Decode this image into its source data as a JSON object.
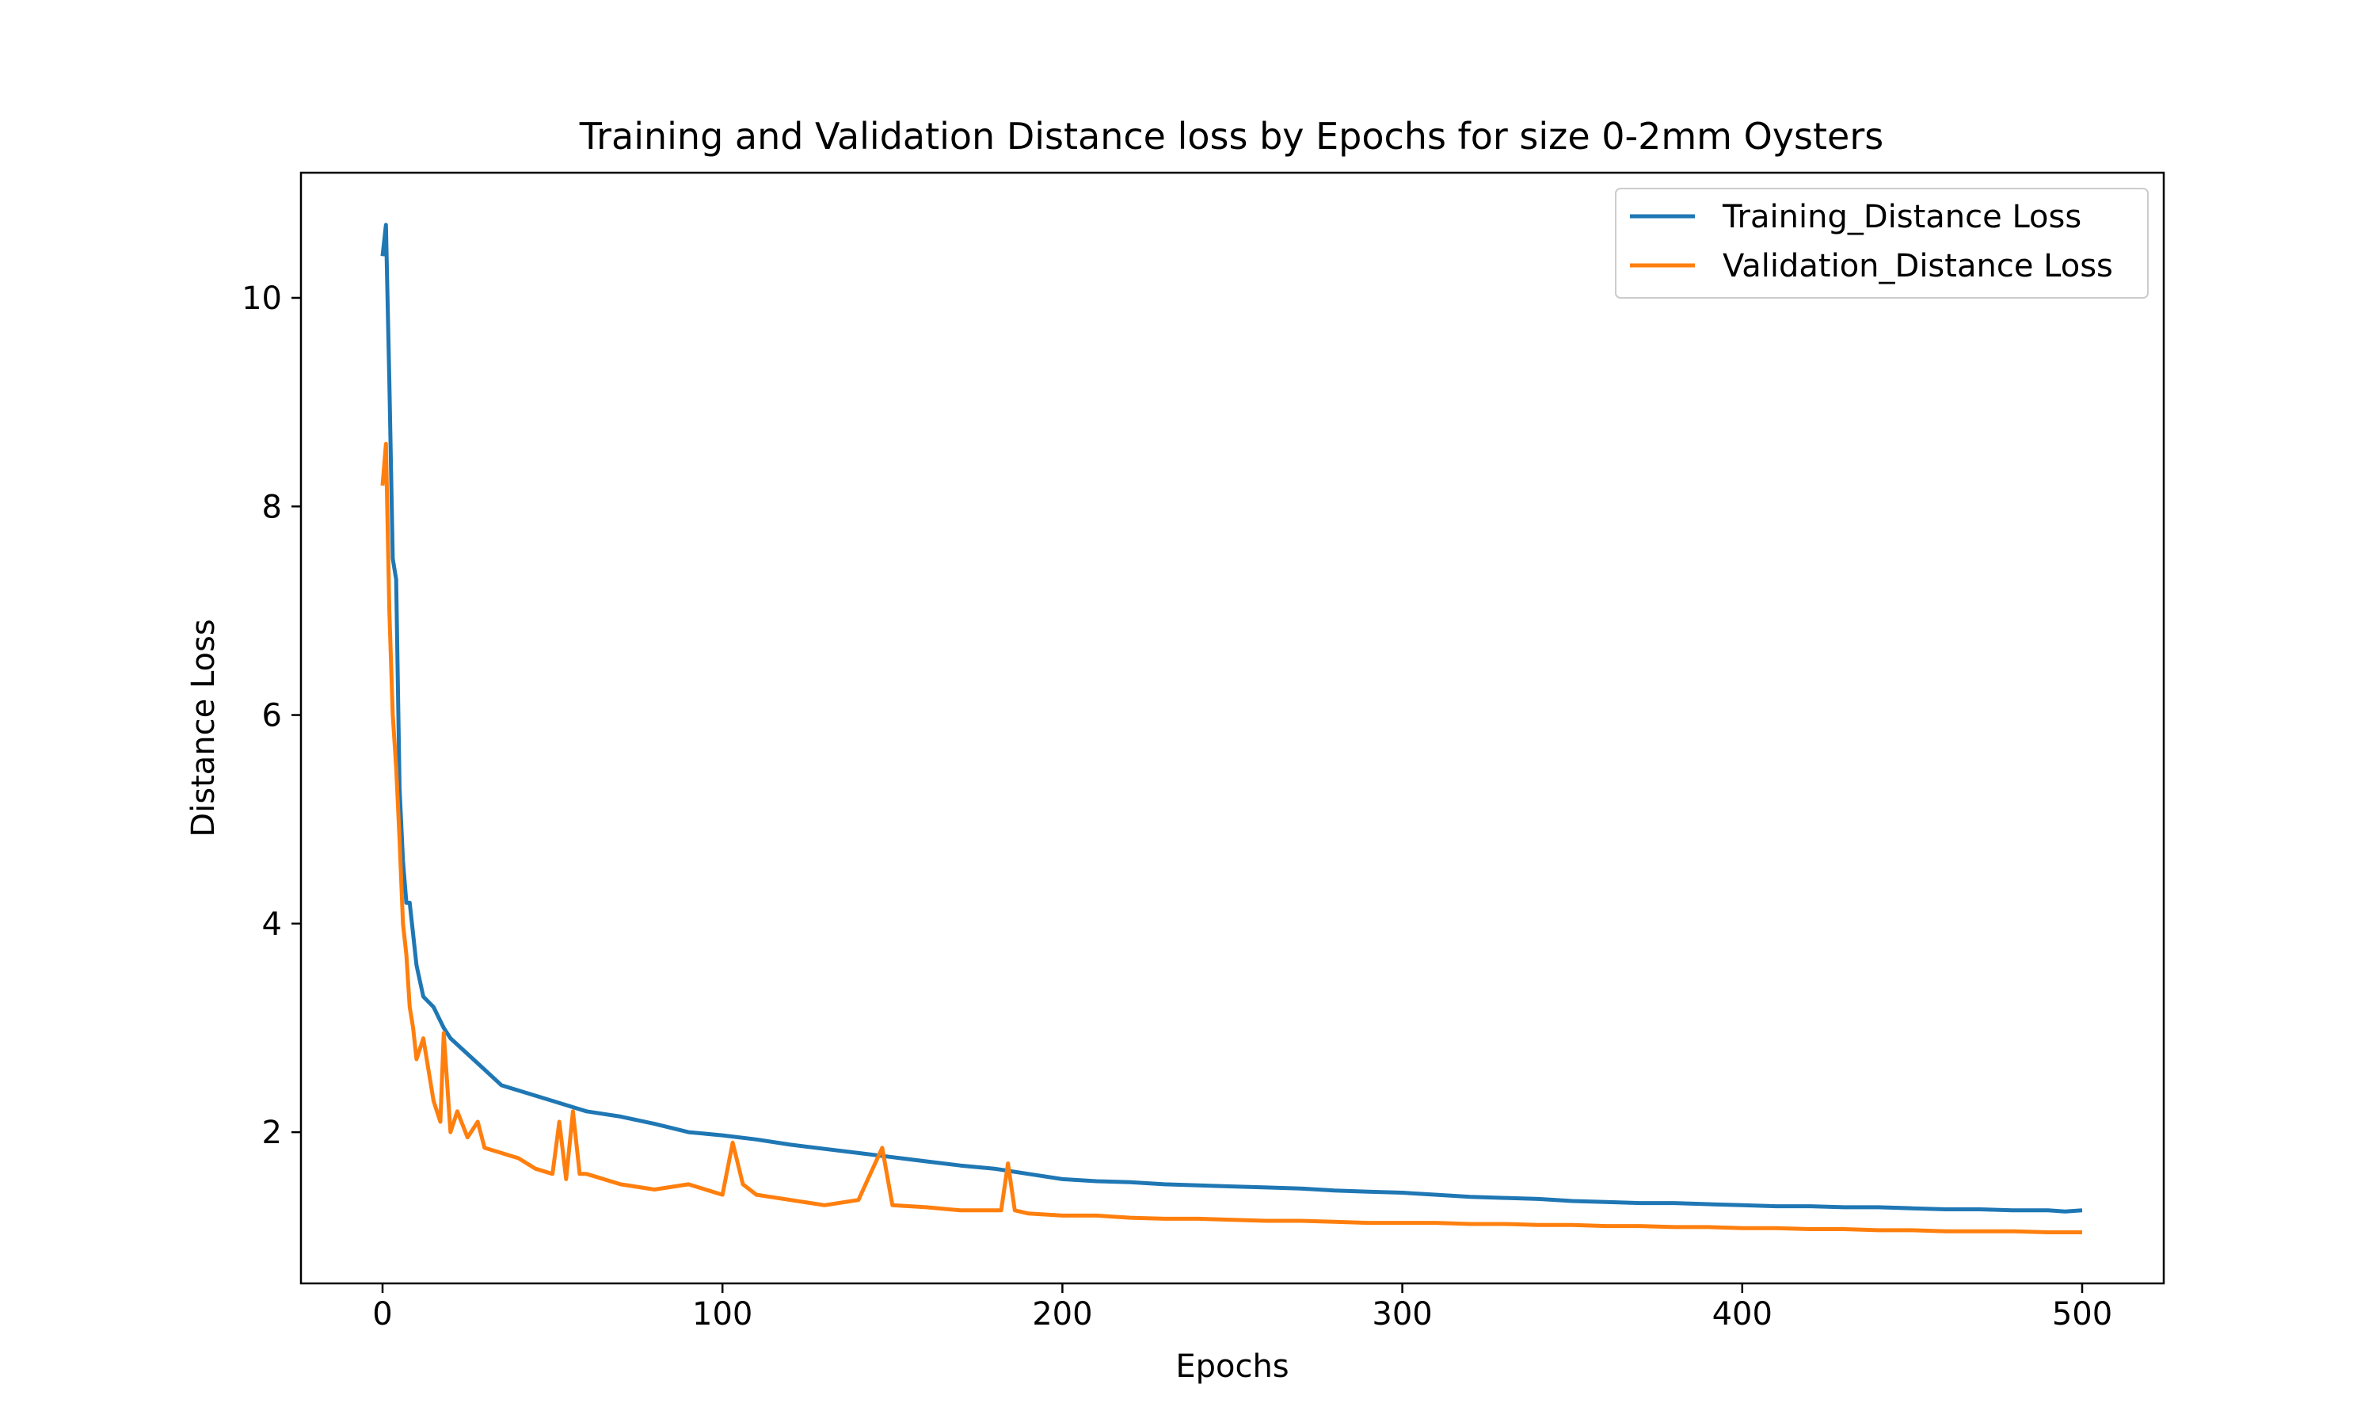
{
  "chart_data": {
    "type": "line",
    "title": "Training and Validation Distance loss by Epochs for size 0-2mm Oysters",
    "xlabel": "Epochs",
    "ylabel": "Distance Loss",
    "xlim": [
      -24,
      524
    ],
    "ylim": [
      0.55,
      11.2
    ],
    "xticks": [
      0,
      100,
      200,
      300,
      400,
      500
    ],
    "yticks": [
      2,
      4,
      6,
      8,
      10
    ],
    "x_tick_labels": [
      "0",
      "100",
      "200",
      "300",
      "400",
      "500"
    ],
    "y_tick_labels": [
      "2",
      "4",
      "6",
      "8",
      "10"
    ],
    "grid": false,
    "legend_position": "top-right",
    "series": [
      {
        "name": "Training_Distance Loss",
        "color": "#1f77b4",
        "points": [
          [
            0,
            10.4
          ],
          [
            1,
            10.7
          ],
          [
            2,
            9.2
          ],
          [
            3,
            7.5
          ],
          [
            4,
            7.3
          ],
          [
            5,
            5.3
          ],
          [
            6,
            4.6
          ],
          [
            7,
            4.2
          ],
          [
            8,
            4.2
          ],
          [
            10,
            3.6
          ],
          [
            12,
            3.3
          ],
          [
            15,
            3.2
          ],
          [
            18,
            3.0
          ],
          [
            20,
            2.9
          ],
          [
            25,
            2.75
          ],
          [
            30,
            2.6
          ],
          [
            35,
            2.45
          ],
          [
            40,
            2.4
          ],
          [
            50,
            2.3
          ],
          [
            60,
            2.2
          ],
          [
            70,
            2.15
          ],
          [
            80,
            2.08
          ],
          [
            90,
            2.0
          ],
          [
            100,
            1.97
          ],
          [
            110,
            1.93
          ],
          [
            120,
            1.88
          ],
          [
            130,
            1.84
          ],
          [
            140,
            1.8
          ],
          [
            150,
            1.76
          ],
          [
            160,
            1.72
          ],
          [
            170,
            1.68
          ],
          [
            180,
            1.65
          ],
          [
            190,
            1.6
          ],
          [
            200,
            1.55
          ],
          [
            210,
            1.53
          ],
          [
            220,
            1.52
          ],
          [
            230,
            1.5
          ],
          [
            240,
            1.49
          ],
          [
            250,
            1.48
          ],
          [
            260,
            1.47
          ],
          [
            270,
            1.46
          ],
          [
            280,
            1.44
          ],
          [
            290,
            1.43
          ],
          [
            300,
            1.42
          ],
          [
            310,
            1.4
          ],
          [
            320,
            1.38
          ],
          [
            330,
            1.37
          ],
          [
            340,
            1.36
          ],
          [
            350,
            1.34
          ],
          [
            360,
            1.33
          ],
          [
            370,
            1.32
          ],
          [
            380,
            1.32
          ],
          [
            390,
            1.31
          ],
          [
            400,
            1.3
          ],
          [
            410,
            1.29
          ],
          [
            420,
            1.29
          ],
          [
            430,
            1.28
          ],
          [
            440,
            1.28
          ],
          [
            450,
            1.27
          ],
          [
            460,
            1.26
          ],
          [
            470,
            1.26
          ],
          [
            480,
            1.25
          ],
          [
            490,
            1.25
          ],
          [
            495,
            1.24
          ],
          [
            500,
            1.25
          ]
        ]
      },
      {
        "name": "Validation_Distance Loss",
        "color": "#ff7f0e",
        "points": [
          [
            0,
            8.2
          ],
          [
            1,
            8.6
          ],
          [
            2,
            7.0
          ],
          [
            3,
            6.0
          ],
          [
            4,
            5.5
          ],
          [
            5,
            4.8
          ],
          [
            6,
            4.0
          ],
          [
            7,
            3.7
          ],
          [
            8,
            3.2
          ],
          [
            9,
            3.0
          ],
          [
            10,
            2.7
          ],
          [
            11,
            2.8
          ],
          [
            12,
            2.9
          ],
          [
            13,
            2.7
          ],
          [
            15,
            2.3
          ],
          [
            17,
            2.1
          ],
          [
            18,
            2.95
          ],
          [
            20,
            2.0
          ],
          [
            22,
            2.2
          ],
          [
            25,
            1.95
          ],
          [
            28,
            2.1
          ],
          [
            30,
            1.85
          ],
          [
            35,
            1.8
          ],
          [
            40,
            1.75
          ],
          [
            45,
            1.65
          ],
          [
            50,
            1.6
          ],
          [
            52,
            2.1
          ],
          [
            54,
            1.55
          ],
          [
            56,
            2.2
          ],
          [
            58,
            1.6
          ],
          [
            60,
            1.6
          ],
          [
            70,
            1.5
          ],
          [
            80,
            1.45
          ],
          [
            90,
            1.5
          ],
          [
            100,
            1.4
          ],
          [
            103,
            1.9
          ],
          [
            106,
            1.5
          ],
          [
            110,
            1.4
          ],
          [
            120,
            1.35
          ],
          [
            130,
            1.3
          ],
          [
            140,
            1.35
          ],
          [
            147,
            1.85
          ],
          [
            150,
            1.3
          ],
          [
            160,
            1.28
          ],
          [
            170,
            1.25
          ],
          [
            182,
            1.25
          ],
          [
            184,
            1.7
          ],
          [
            186,
            1.25
          ],
          [
            190,
            1.22
          ],
          [
            200,
            1.2
          ],
          [
            210,
            1.2
          ],
          [
            220,
            1.18
          ],
          [
            230,
            1.17
          ],
          [
            240,
            1.17
          ],
          [
            250,
            1.16
          ],
          [
            260,
            1.15
          ],
          [
            270,
            1.15
          ],
          [
            280,
            1.14
          ],
          [
            290,
            1.13
          ],
          [
            300,
            1.13
          ],
          [
            310,
            1.13
          ],
          [
            320,
            1.12
          ],
          [
            330,
            1.12
          ],
          [
            340,
            1.11
          ],
          [
            350,
            1.11
          ],
          [
            360,
            1.1
          ],
          [
            370,
            1.1
          ],
          [
            380,
            1.09
          ],
          [
            390,
            1.09
          ],
          [
            400,
            1.08
          ],
          [
            410,
            1.08
          ],
          [
            420,
            1.07
          ],
          [
            430,
            1.07
          ],
          [
            440,
            1.06
          ],
          [
            450,
            1.06
          ],
          [
            460,
            1.05
          ],
          [
            470,
            1.05
          ],
          [
            480,
            1.05
          ],
          [
            490,
            1.04
          ],
          [
            500,
            1.04
          ]
        ]
      }
    ]
  }
}
